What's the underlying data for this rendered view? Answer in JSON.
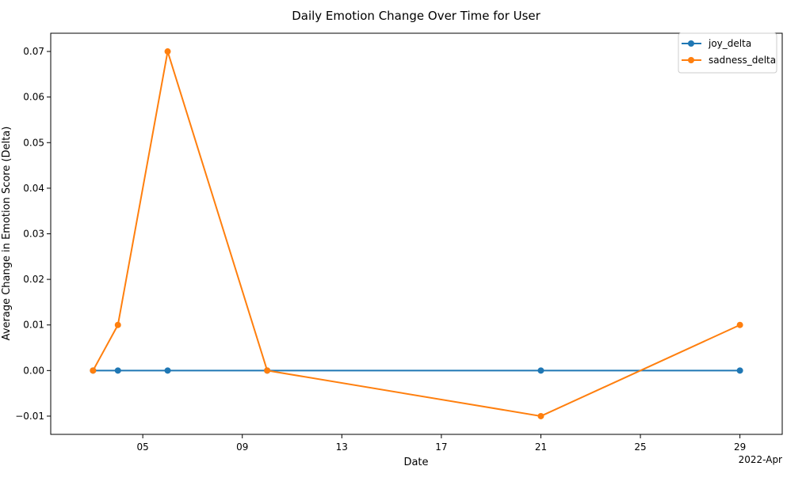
{
  "chart_data": {
    "type": "line",
    "title": "Daily Emotion Change Over Time for User",
    "xlabel": "Date",
    "ylabel": "Average Change in Emotion Score (Delta)",
    "x_axis": {
      "type": "date",
      "ticks": [
        "2022-04-05",
        "2022-04-09",
        "2022-04-13",
        "2022-04-17",
        "2022-04-21",
        "2022-04-25",
        "2022-04-29"
      ],
      "tick_labels": [
        "05",
        "09",
        "13",
        "17",
        "21",
        "25",
        "29"
      ],
      "offset_label": "2022-Apr",
      "range": [
        "2022-04-01T07:12",
        "2022-04-30T16:48"
      ]
    },
    "y_axis": {
      "ticks": [
        -0.01,
        0.0,
        0.01,
        0.02,
        0.03,
        0.04,
        0.05,
        0.06,
        0.07
      ],
      "tick_labels": [
        "−0.01",
        "0.00",
        "0.01",
        "0.02",
        "0.03",
        "0.04",
        "0.05",
        "0.06",
        "0.07"
      ],
      "range": [
        -0.014,
        0.074
      ]
    },
    "grid": false,
    "legend_position": "top-right",
    "series": [
      {
        "name": "joy_delta",
        "color": "#1f77b4",
        "marker": "circle",
        "x": [
          "2022-04-03",
          "2022-04-04",
          "2022-04-06",
          "2022-04-10",
          "2022-04-21",
          "2022-04-29"
        ],
        "y": [
          0.0,
          0.0,
          0.0,
          0.0,
          0.0,
          0.0
        ]
      },
      {
        "name": "sadness_delta",
        "color": "#ff7f0e",
        "marker": "circle",
        "x": [
          "2022-04-03",
          "2022-04-04",
          "2022-04-06",
          "2022-04-10",
          "2022-04-21",
          "2022-04-29"
        ],
        "y": [
          0.0,
          0.01,
          0.07,
          0.0,
          -0.01,
          0.01
        ]
      }
    ]
  }
}
